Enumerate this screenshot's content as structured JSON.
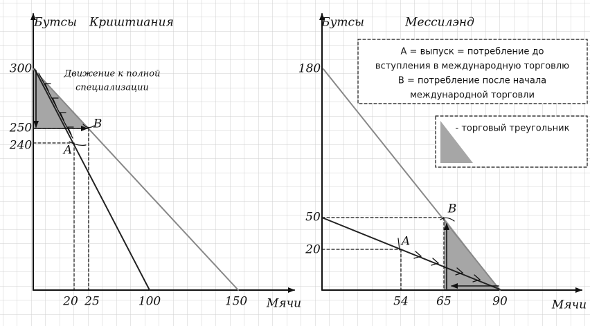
{
  "panels": [
    {
      "y_axis_label": "Бутсы",
      "title": "Криштиания",
      "x_axis_label": "Мячи",
      "yticks": [
        "300",
        "250",
        "240"
      ],
      "xticks": [
        "20",
        "25",
        "100",
        "150"
      ],
      "points": [
        "A",
        "B"
      ],
      "annotation": [
        "Движение к полной",
        "специализации"
      ]
    },
    {
      "y_axis_label": "Бутсы",
      "title": "Мессилэнд",
      "x_axis_label": "Мячи",
      "yticks": [
        "180",
        "50",
        "20"
      ],
      "xticks": [
        "54",
        "65",
        "90"
      ],
      "points": [
        "A",
        "B"
      ],
      "definition": [
        "А = выпуск = потребление до",
        "вступления в международную торговлю",
        "В = потребление после начала",
        "международной торговли"
      ],
      "legend": "- торговый треугольник"
    }
  ]
}
